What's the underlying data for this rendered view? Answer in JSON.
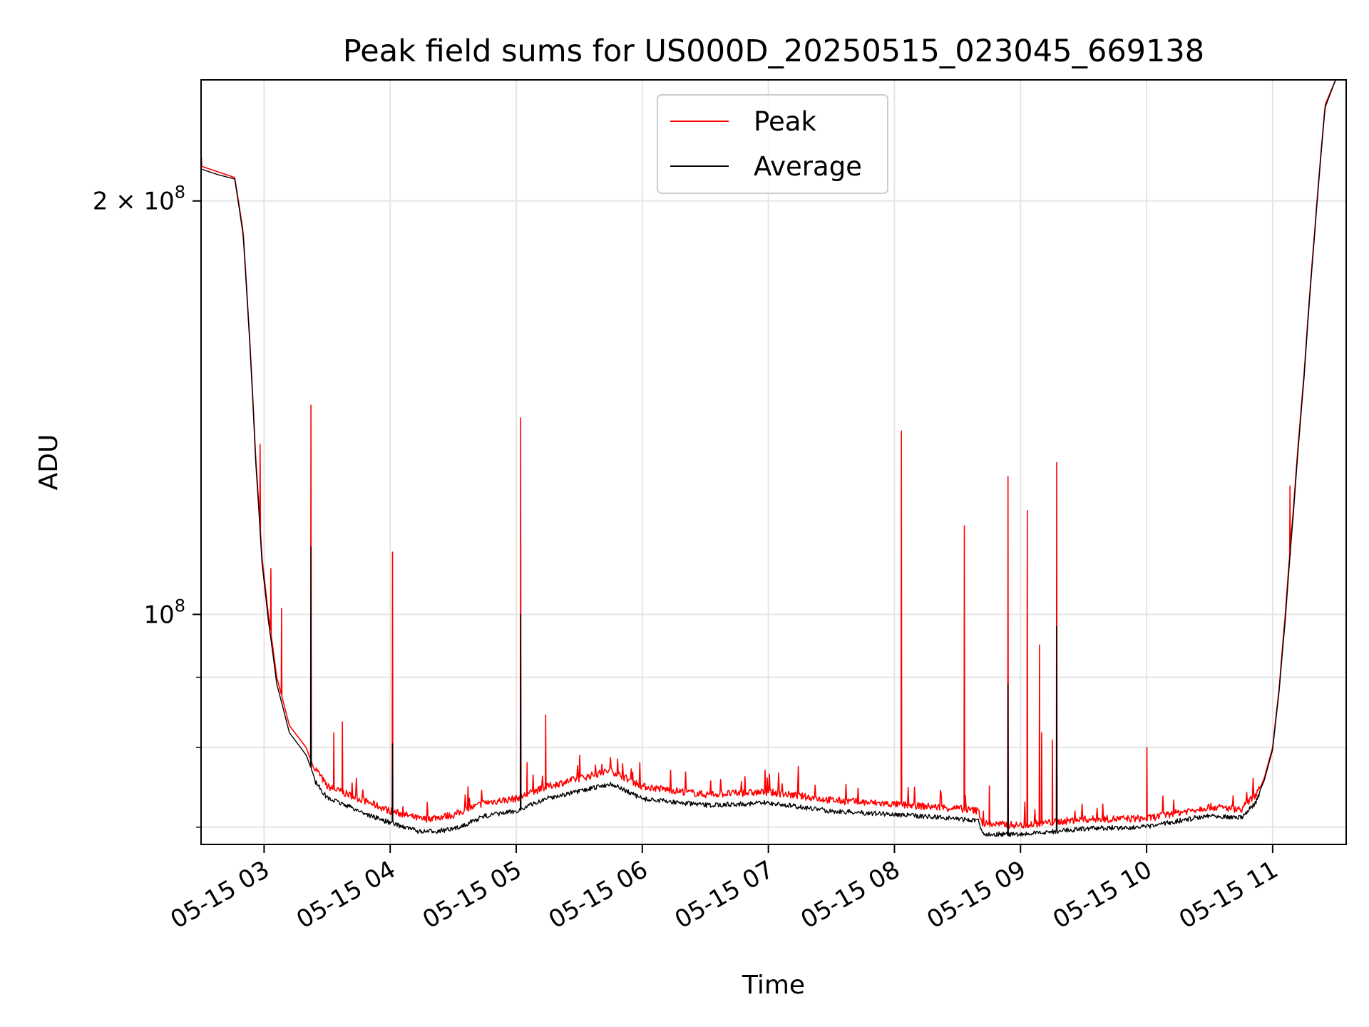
{
  "chart_data": {
    "type": "line",
    "title": "Peak field sums for US000D_20250515_023045_669138",
    "xlabel": "Time",
    "ylabel": "ADU",
    "y_scale": "log",
    "x_range": [
      "05-15 02:30",
      "05-15 11:35"
    ],
    "ylim": [
      68000000,
      245000000
    ],
    "y_major_ticks": [
      {
        "value": 100000000,
        "label": "10^8"
      },
      {
        "value": 200000000,
        "label": "2×10^8"
      }
    ],
    "y_minor_ticks": [
      70000000,
      80000000,
      90000000
    ],
    "x_ticks": [
      "05-15 03",
      "05-15 04",
      "05-15 05",
      "05-15 06",
      "05-15 07",
      "05-15 08",
      "05-15 09",
      "05-15 10",
      "05-15 11"
    ],
    "grid": true,
    "legend": {
      "position": "top-center"
    },
    "series": [
      {
        "name": "Peak",
        "color": "#ff0000",
        "points": [
          [
            "05-15 02:30",
            212000000
          ],
          [
            "05-15 02:38",
            210000000
          ],
          [
            "05-15 02:46",
            208000000
          ],
          [
            "05-15 02:50",
            190000000
          ],
          [
            "05-15 02:53",
            160000000
          ],
          [
            "05-15 02:56",
            130000000
          ],
          [
            "05-15 02:59",
            110000000
          ],
          [
            "05-15 03:02",
            100000000
          ],
          [
            "05-15 03:06",
            90000000
          ],
          [
            "05-15 03:12",
            83000000
          ],
          [
            "05-15 03:20",
            80000000
          ],
          [
            "05-15 03:24",
            77000000
          ],
          [
            "05-15 03:30",
            74500000
          ],
          [
            "05-15 03:40",
            73500000
          ],
          [
            "05-15 03:50",
            72500000
          ],
          [
            "05-15 04:00",
            71500000
          ],
          [
            "05-15 04:15",
            70500000
          ],
          [
            "05-15 04:30",
            71000000
          ],
          [
            "05-15 04:45",
            72500000
          ],
          [
            "05-15 05:00",
            73000000
          ],
          [
            "05-15 05:15",
            74500000
          ],
          [
            "05-15 05:30",
            75500000
          ],
          [
            "05-15 05:45",
            76500000
          ],
          [
            "05-15 06:00",
            74500000
          ],
          [
            "05-15 06:30",
            73500000
          ],
          [
            "05-15 07:00",
            73800000
          ],
          [
            "05-15 07:30",
            72800000
          ],
          [
            "05-15 08:00",
            72300000
          ],
          [
            "05-15 08:30",
            71800000
          ],
          [
            "05-15 08:40",
            71500000
          ],
          [
            "05-15 08:42",
            70000000
          ],
          [
            "05-15 09:00",
            69800000
          ],
          [
            "05-15 09:30",
            70500000
          ],
          [
            "05-15 10:00",
            70600000
          ],
          [
            "05-15 10:30",
            72000000
          ],
          [
            "05-15 10:45",
            71700000
          ],
          [
            "05-15 10:52",
            73500000
          ],
          [
            "05-15 10:56",
            76000000
          ],
          [
            "05-15 11:00",
            80000000
          ],
          [
            "05-15 11:03",
            88000000
          ],
          [
            "05-15 11:06",
            100000000
          ],
          [
            "05-15 11:10",
            120000000
          ],
          [
            "05-15 11:15",
            150000000
          ],
          [
            "05-15 11:20",
            190000000
          ],
          [
            "05-15 11:25",
            235000000
          ],
          [
            "05-15 11:30",
            245000000
          ],
          [
            "05-15 11:35",
            245000000
          ]
        ],
        "spikes": [
          [
            "05-15 02:30",
            215000000
          ],
          [
            "05-15 02:58",
            133000000
          ],
          [
            "05-15 03:03",
            108000000
          ],
          [
            "05-15 03:08",
            101000000
          ],
          [
            "05-15 03:22",
            142000000
          ],
          [
            "05-15 03:33",
            82000000
          ],
          [
            "05-15 03:37",
            83500000
          ],
          [
            "05-15 04:01",
            111000000
          ],
          [
            "05-15 05:02",
            139000000
          ],
          [
            "05-15 05:05",
            78000000
          ],
          [
            "05-15 05:14",
            84500000
          ],
          [
            "05-15 07:14",
            77500000
          ],
          [
            "05-15 08:03",
            136000000
          ],
          [
            "05-15 08:33",
            116000000
          ],
          [
            "05-15 08:45",
            75000000
          ],
          [
            "05-15 08:54",
            126000000
          ],
          [
            "05-15 09:03",
            119000000
          ],
          [
            "05-15 09:09",
            95000000
          ],
          [
            "05-15 09:10",
            82000000
          ],
          [
            "05-15 09:15",
            81000000
          ],
          [
            "05-15 09:17",
            129000000
          ],
          [
            "05-15 10:00",
            80000000
          ],
          [
            "05-15 11:08",
            124000000
          ]
        ]
      },
      {
        "name": "Average",
        "color": "#000000",
        "points": [
          [
            "05-15 02:30",
            211000000
          ],
          [
            "05-15 02:38",
            209000000
          ],
          [
            "05-15 02:46",
            207500000
          ],
          [
            "05-15 02:50",
            189000000
          ],
          [
            "05-15 02:53",
            159000000
          ],
          [
            "05-15 02:56",
            129000000
          ],
          [
            "05-15 02:59",
            109000000
          ],
          [
            "05-15 03:02",
            99000000
          ],
          [
            "05-15 03:06",
            89000000
          ],
          [
            "05-15 03:12",
            82000000
          ],
          [
            "05-15 03:20",
            79000000
          ],
          [
            "05-15 03:24",
            76000000
          ],
          [
            "05-15 03:30",
            73800000
          ],
          [
            "05-15 03:40",
            72800000
          ],
          [
            "05-15 03:50",
            71700000
          ],
          [
            "05-15 04:00",
            70800000
          ],
          [
            "05-15 04:15",
            69700000
          ],
          [
            "05-15 04:30",
            70000000
          ],
          [
            "05-15 04:45",
            71600000
          ],
          [
            "05-15 05:00",
            72200000
          ],
          [
            "05-15 05:15",
            73800000
          ],
          [
            "05-15 05:30",
            74600000
          ],
          [
            "05-15 05:45",
            75600000
          ],
          [
            "05-15 06:00",
            73700000
          ],
          [
            "05-15 06:30",
            72900000
          ],
          [
            "05-15 07:00",
            73200000
          ],
          [
            "05-15 07:30",
            72200000
          ],
          [
            "05-15 08:00",
            71800000
          ],
          [
            "05-15 08:30",
            71300000
          ],
          [
            "05-15 08:40",
            71000000
          ],
          [
            "05-15 08:42",
            69500000
          ],
          [
            "05-15 09:00",
            69400000
          ],
          [
            "05-15 09:30",
            70100000
          ],
          [
            "05-15 10:00",
            70300000
          ],
          [
            "05-15 10:30",
            71700000
          ],
          [
            "05-15 10:45",
            71400000
          ],
          [
            "05-15 10:52",
            73200000
          ],
          [
            "05-15 10:56",
            75700000
          ],
          [
            "05-15 11:00",
            79700000
          ],
          [
            "05-15 11:03",
            87600000
          ],
          [
            "05-15 11:06",
            99000000
          ],
          [
            "05-15 11:10",
            119000000
          ],
          [
            "05-15 11:15",
            149000000
          ],
          [
            "05-15 11:20",
            189000000
          ],
          [
            "05-15 11:25",
            234000000
          ],
          [
            "05-15 11:30",
            245000000
          ],
          [
            "05-15 11:35",
            245000000
          ]
        ],
        "spikes": [
          [
            "05-15 03:22",
            112000000
          ],
          [
            "05-15 04:01",
            80500000
          ],
          [
            "05-15 05:02",
            100000000
          ],
          [
            "05-15 08:54",
            89000000
          ],
          [
            "05-15 09:17",
            98000000
          ]
        ]
      }
    ]
  }
}
